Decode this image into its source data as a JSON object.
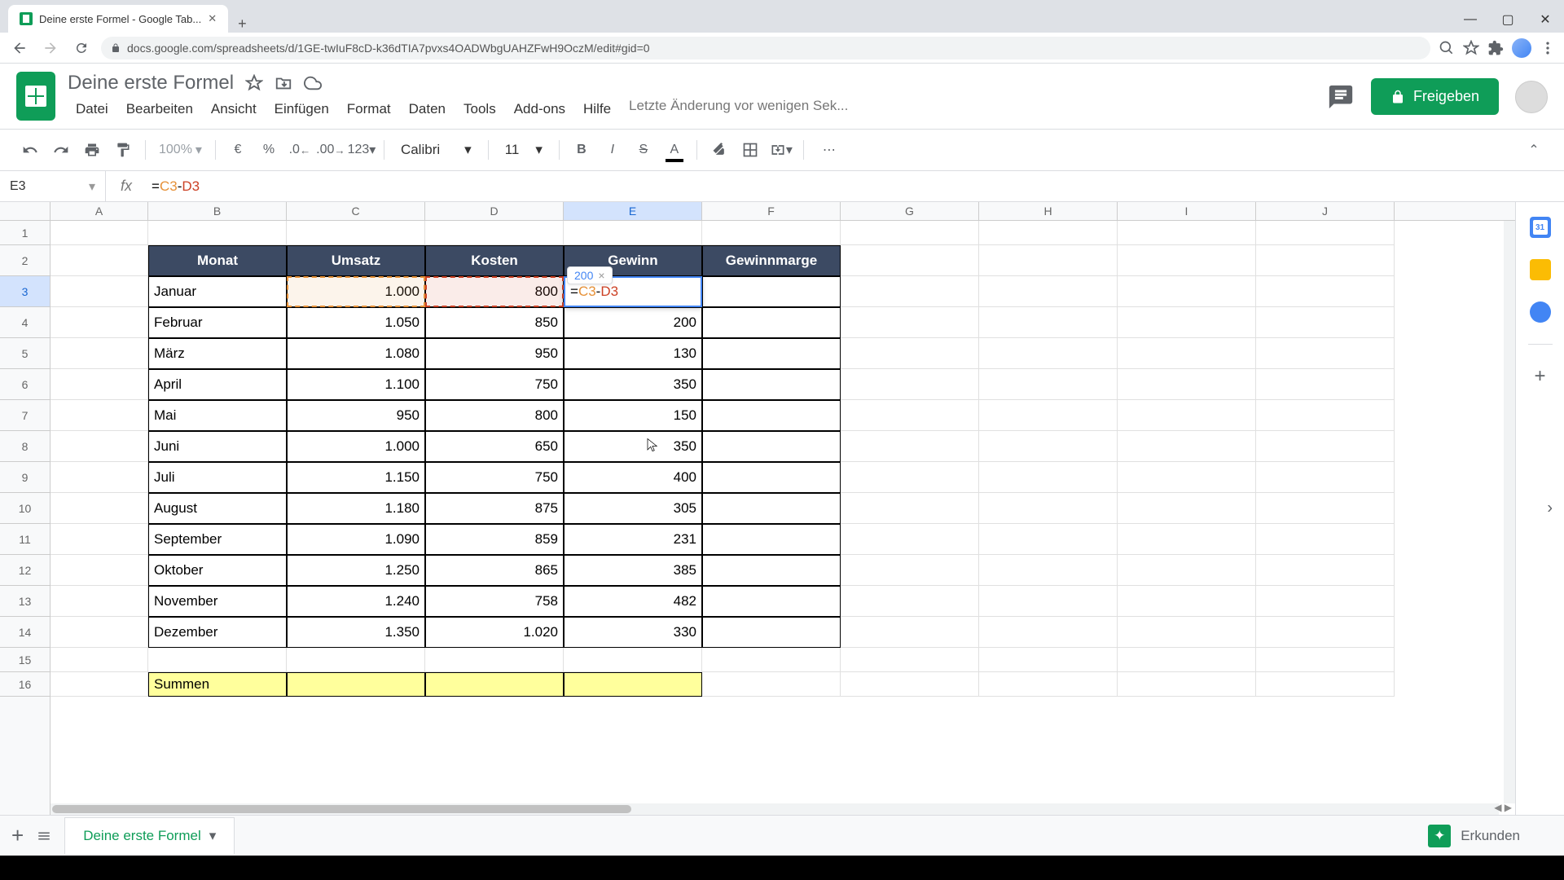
{
  "browser": {
    "tab_title": "Deine erste Formel - Google Tab...",
    "url": "docs.google.com/spreadsheets/d/1GE-twIuF8cD-k36dTIA7pvxs4OADWbgUAHZFwH9OczM/edit#gid=0"
  },
  "doc": {
    "title": "Deine erste Formel",
    "share_label": "Freigeben",
    "last_edit": "Letzte Änderung vor wenigen Sek..."
  },
  "menu": {
    "file": "Datei",
    "edit": "Bearbeiten",
    "view": "Ansicht",
    "insert": "Einfügen",
    "format": "Format",
    "data": "Daten",
    "tools": "Tools",
    "addons": "Add-ons",
    "help": "Hilfe"
  },
  "toolbar": {
    "zoom": "100%",
    "currency": "€",
    "percent": "%",
    "dec_minus": ".0",
    "dec_plus": ".00",
    "num_format": "123",
    "font": "Calibri",
    "font_size": "11"
  },
  "formula": {
    "name_box": "E3",
    "formula_display": "=C3-D3",
    "editing_cell_formula": "=C3-D3",
    "preview_value": "200"
  },
  "columns": {
    "letters": [
      "A",
      "B",
      "C",
      "D",
      "E",
      "F",
      "G",
      "H",
      "I",
      "J"
    ],
    "widths": [
      120,
      170,
      170,
      170,
      170,
      170,
      170,
      170,
      170,
      170
    ],
    "selected_index": 4
  },
  "rows": {
    "count": 16,
    "heights": [
      30,
      38,
      38,
      38,
      38,
      38,
      38,
      38,
      38,
      38,
      38,
      38,
      38,
      38,
      30,
      30
    ],
    "selected_index": 2
  },
  "table": {
    "headers": [
      "Monat",
      "Umsatz",
      "Kosten",
      "Gewinn",
      "Gewinnmarge"
    ],
    "data": [
      {
        "month": "Januar",
        "umsatz": "1.000",
        "kosten": "800",
        "gewinn": ""
      },
      {
        "month": "Februar",
        "umsatz": "1.050",
        "kosten": "850",
        "gewinn": "200"
      },
      {
        "month": "März",
        "umsatz": "1.080",
        "kosten": "950",
        "gewinn": "130"
      },
      {
        "month": "April",
        "umsatz": "1.100",
        "kosten": "750",
        "gewinn": "350"
      },
      {
        "month": "Mai",
        "umsatz": "950",
        "kosten": "800",
        "gewinn": "150"
      },
      {
        "month": "Juni",
        "umsatz": "1.000",
        "kosten": "650",
        "gewinn": "350"
      },
      {
        "month": "Juli",
        "umsatz": "1.150",
        "kosten": "750",
        "gewinn": "400"
      },
      {
        "month": "August",
        "umsatz": "1.180",
        "kosten": "875",
        "gewinn": "305"
      },
      {
        "month": "September",
        "umsatz": "1.090",
        "kosten": "859",
        "gewinn": "231"
      },
      {
        "month": "Oktober",
        "umsatz": "1.250",
        "kosten": "865",
        "gewinn": "385"
      },
      {
        "month": "November",
        "umsatz": "1.240",
        "kosten": "758",
        "gewinn": "482"
      },
      {
        "month": "Dezember",
        "umsatz": "1.350",
        "kosten": "1.020",
        "gewinn": "330"
      }
    ],
    "sum_label": "Summen"
  },
  "sheet_tabs": {
    "active": "Deine erste Formel",
    "explore": "Erkunden"
  },
  "colors": {
    "brand": "#0f9d58",
    "header_bg": "#3c4a63",
    "sum_bg": "#ffff9c",
    "ref1": "#e69138",
    "ref2": "#cc4125",
    "selection": "#4285f4"
  }
}
